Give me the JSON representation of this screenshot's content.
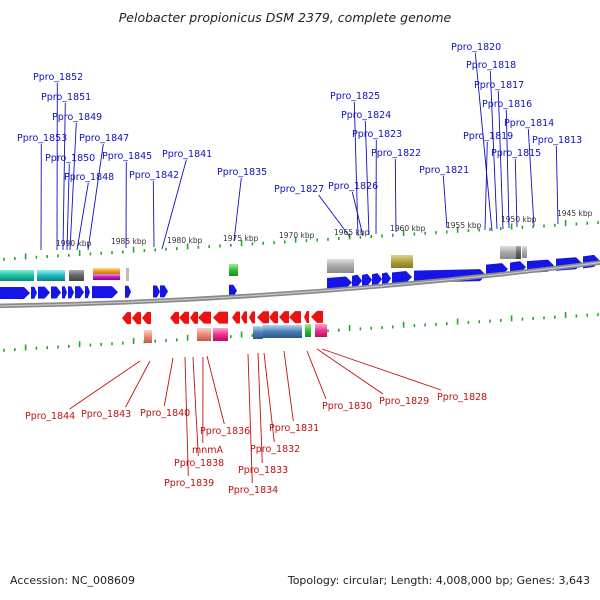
{
  "title": "Pelobacter propionicus DSM 2379, complete genome",
  "footer": {
    "accession": "Accession: NC_008609",
    "summary": "Topology: circular; Length: 4,008,000 bp; Genes: 3,643"
  },
  "colors": {
    "forward": "#1515e6",
    "reverse": "#ee1111",
    "backbone": "#888888",
    "tick": "#22aa22",
    "label_forward": "#1010c0",
    "label_reverse": "#c01010"
  },
  "scale_labels": [
    "1990 kbp",
    "1985 kbp",
    "1980 kbp",
    "1975 kbp",
    "1970 kbp",
    "1965 kbp",
    "1960 kbp",
    "1955 kbp",
    "1950 kbp",
    "1945 kbp"
  ],
  "top_labels": [
    "Ppro_1853",
    "Ppro_1852",
    "Ppro_1851",
    "Ppro_1850",
    "Ppro_1849",
    "Ppro_1848",
    "Ppro_1847",
    "Ppro_1845",
    "Ppro_1842",
    "Ppro_1841",
    "Ppro_1835",
    "Ppro_1827",
    "Ppro_1826",
    "Ppro_1825",
    "Ppro_1824",
    "Ppro_1823",
    "Ppro_1822",
    "Ppro_1821",
    "Ppro_1820",
    "Ppro_1819",
    "Ppro_1818",
    "Ppro_1817",
    "Ppro_1816",
    "Ppro_1815",
    "Ppro_1814",
    "Ppro_1813"
  ],
  "bottom_labels": [
    "Ppro_1844",
    "Ppro_1843",
    "Ppro_1840",
    "Ppro_1839",
    "Ppro_1838",
    "mnmA",
    "Ppro_1836",
    "Ppro_1834",
    "Ppro_1833",
    "Ppro_1832",
    "Ppro_1831",
    "Ppro_1830",
    "Ppro_1829",
    "Ppro_1828"
  ]
}
